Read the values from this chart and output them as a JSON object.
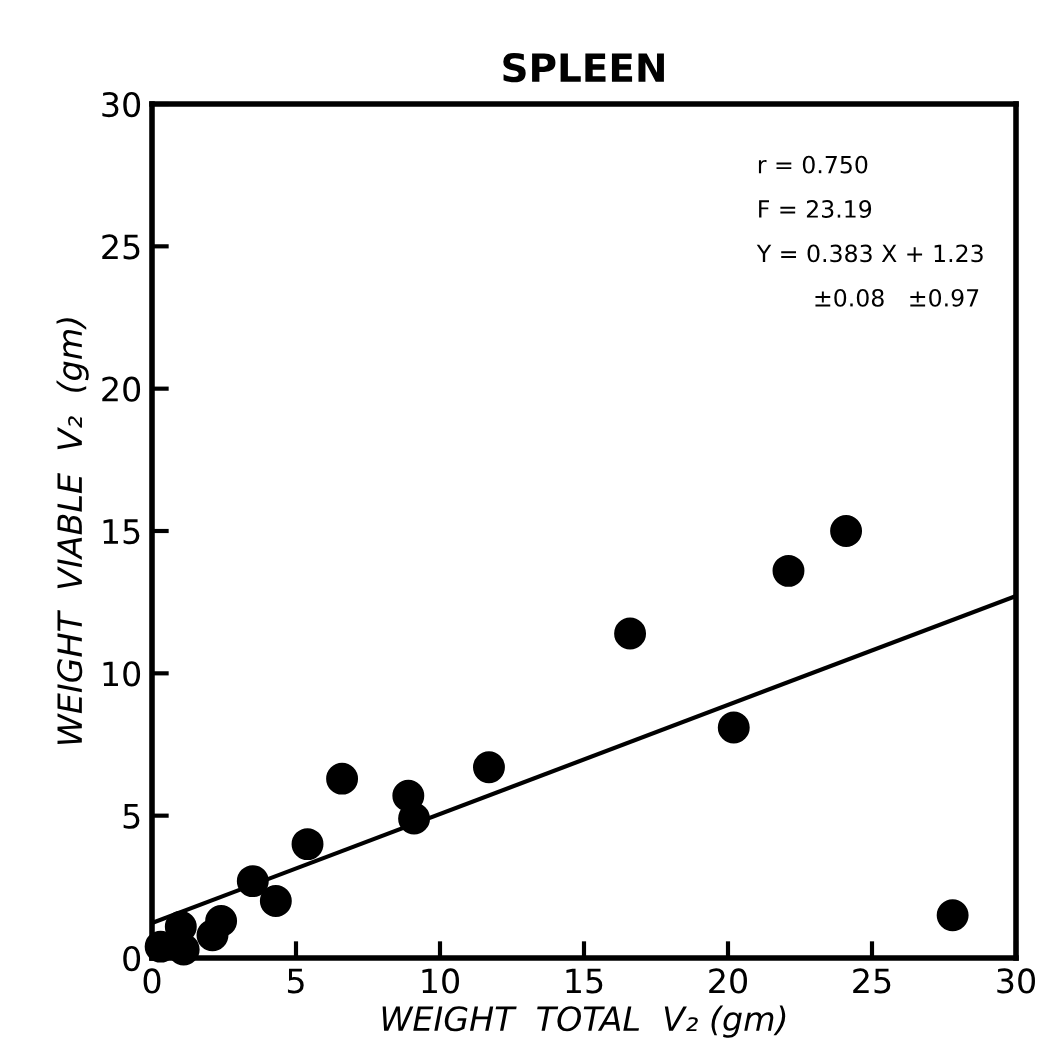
{
  "chart_data": {
    "type": "scatter",
    "title": "SPLEEN",
    "xlabel": "WEIGHT  TOTAL  V₂ (gm)",
    "ylabel": "WEIGHT  VIABLE  V₂  (gm)",
    "series": [
      {
        "color": "#000000",
        "marker": "circle",
        "x": [
          27.8,
          24.1,
          22.1,
          20.2,
          16.6,
          11.7,
          9.1,
          8.9,
          6.6,
          5.4,
          4.3,
          3.5,
          2.4,
          2.1,
          1.0,
          0.3,
          1.1
        ],
        "values": [
          1.5,
          15.0,
          13.6,
          8.1,
          11.4,
          6.7,
          4.9,
          5.7,
          6.3,
          4.0,
          2.0,
          2.7,
          1.3,
          0.8,
          1.1,
          0.4,
          0.3
        ]
      },
      {
        "type": "line",
        "color": "#000000",
        "x": [
          0,
          30
        ],
        "values": [
          1.23,
          12.72
        ]
      }
    ],
    "annotations": [
      "r = 0.750",
      "F = 23.19",
      "Y = 0.383 X + 1.23",
      "±0.08   ±0.97"
    ],
    "xlim": [
      0,
      30
    ],
    "ylim": [
      0,
      30
    ],
    "xticks": [
      0,
      5,
      10,
      15,
      20,
      25,
      30
    ],
    "yticks": [
      0,
      5,
      10,
      15,
      20,
      25,
      30
    ]
  }
}
